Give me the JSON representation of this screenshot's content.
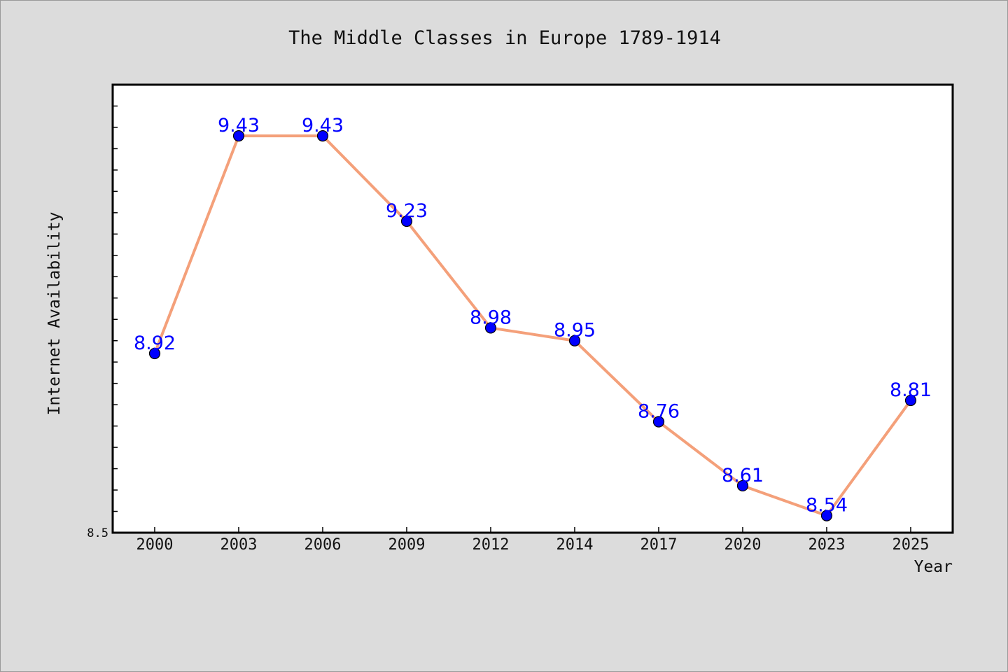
{
  "chart_data": {
    "type": "line",
    "title": "The Middle Classes in Europe 1789-1914",
    "xlabel": "Year",
    "ylabel": "Internet Availability",
    "categories": [
      "2000",
      "2003",
      "2006",
      "2009",
      "2012",
      "2014",
      "2017",
      "2020",
      "2023",
      "2025"
    ],
    "series": [
      {
        "values": [
          8.92,
          9.43,
          9.43,
          9.23,
          8.98,
          8.95,
          8.76,
          8.61,
          8.54,
          8.81
        ]
      }
    ],
    "data_labels": [
      "8.92",
      "9.43",
      "9.43",
      "9.23",
      "8.98",
      "8.95",
      "8.76",
      "8.61",
      "8.54",
      "8.81"
    ],
    "y_tick_labels": [
      "8.5"
    ],
    "ylim": [
      8.5,
      9.55
    ],
    "grid": false,
    "legend": "none",
    "colors": {
      "line": "#f4a07a",
      "marker": "#0000ff",
      "data_label": "#0000ff",
      "background": "#dcdcdc",
      "plot_background": "#ffffff"
    }
  }
}
